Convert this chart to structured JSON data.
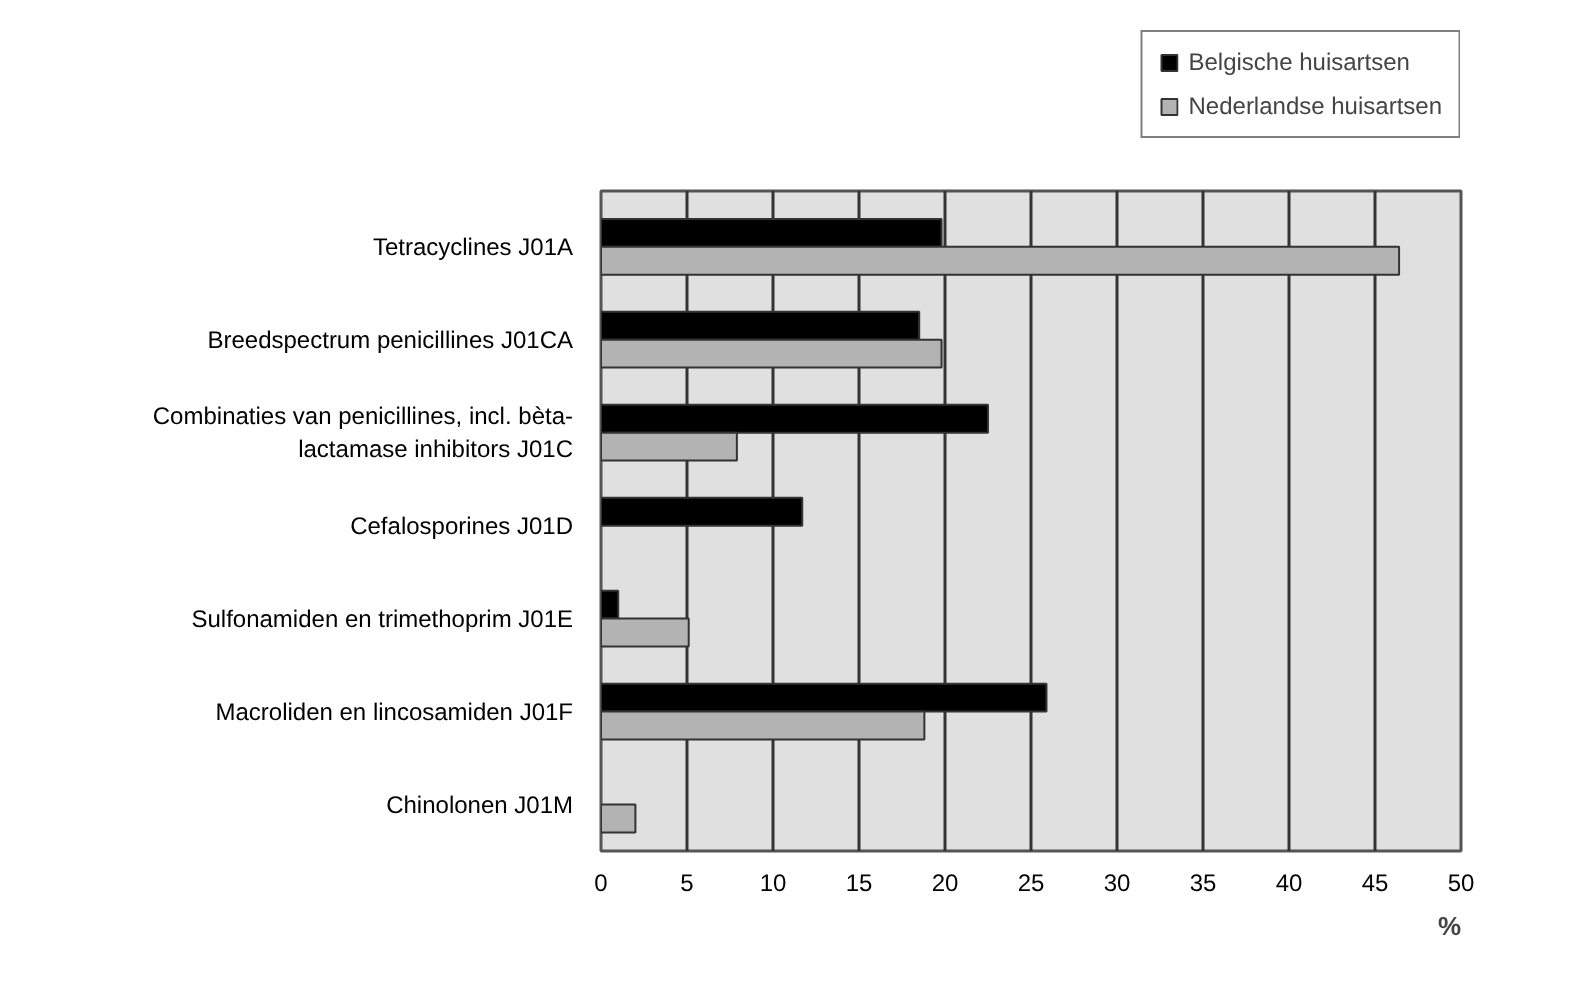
{
  "chart_data": {
    "type": "bar",
    "orientation": "horizontal",
    "xlabel": "%",
    "categories": [
      "Tetracyclines J01A",
      "Breedspectrum penicillines J01CA",
      "Combinaties van penicillines, incl. bèta-\nlactamase inhibitors J01C",
      "Cefalosporines J01D",
      "Sulfonamiden en trimethoprim J01E",
      "Macroliden en lincosamiden J01F",
      "Chinolonen J01M"
    ],
    "series": [
      {
        "name": "Belgische huisartsen",
        "color": "#000000",
        "values": [
          19.8,
          18.5,
          22.5,
          11.7,
          1.0,
          25.9,
          null
        ]
      },
      {
        "name": "Nederlandse huisartsen",
        "color": "#b3b3b3",
        "values": [
          46.4,
          19.8,
          7.9,
          null,
          5.1,
          18.8,
          2.0
        ]
      }
    ],
    "xlim": [
      0,
      50
    ],
    "xticks": [
      0,
      5,
      10,
      15,
      20,
      25,
      30,
      35,
      40,
      45,
      50
    ],
    "grid": "x",
    "legend": "top right"
  }
}
